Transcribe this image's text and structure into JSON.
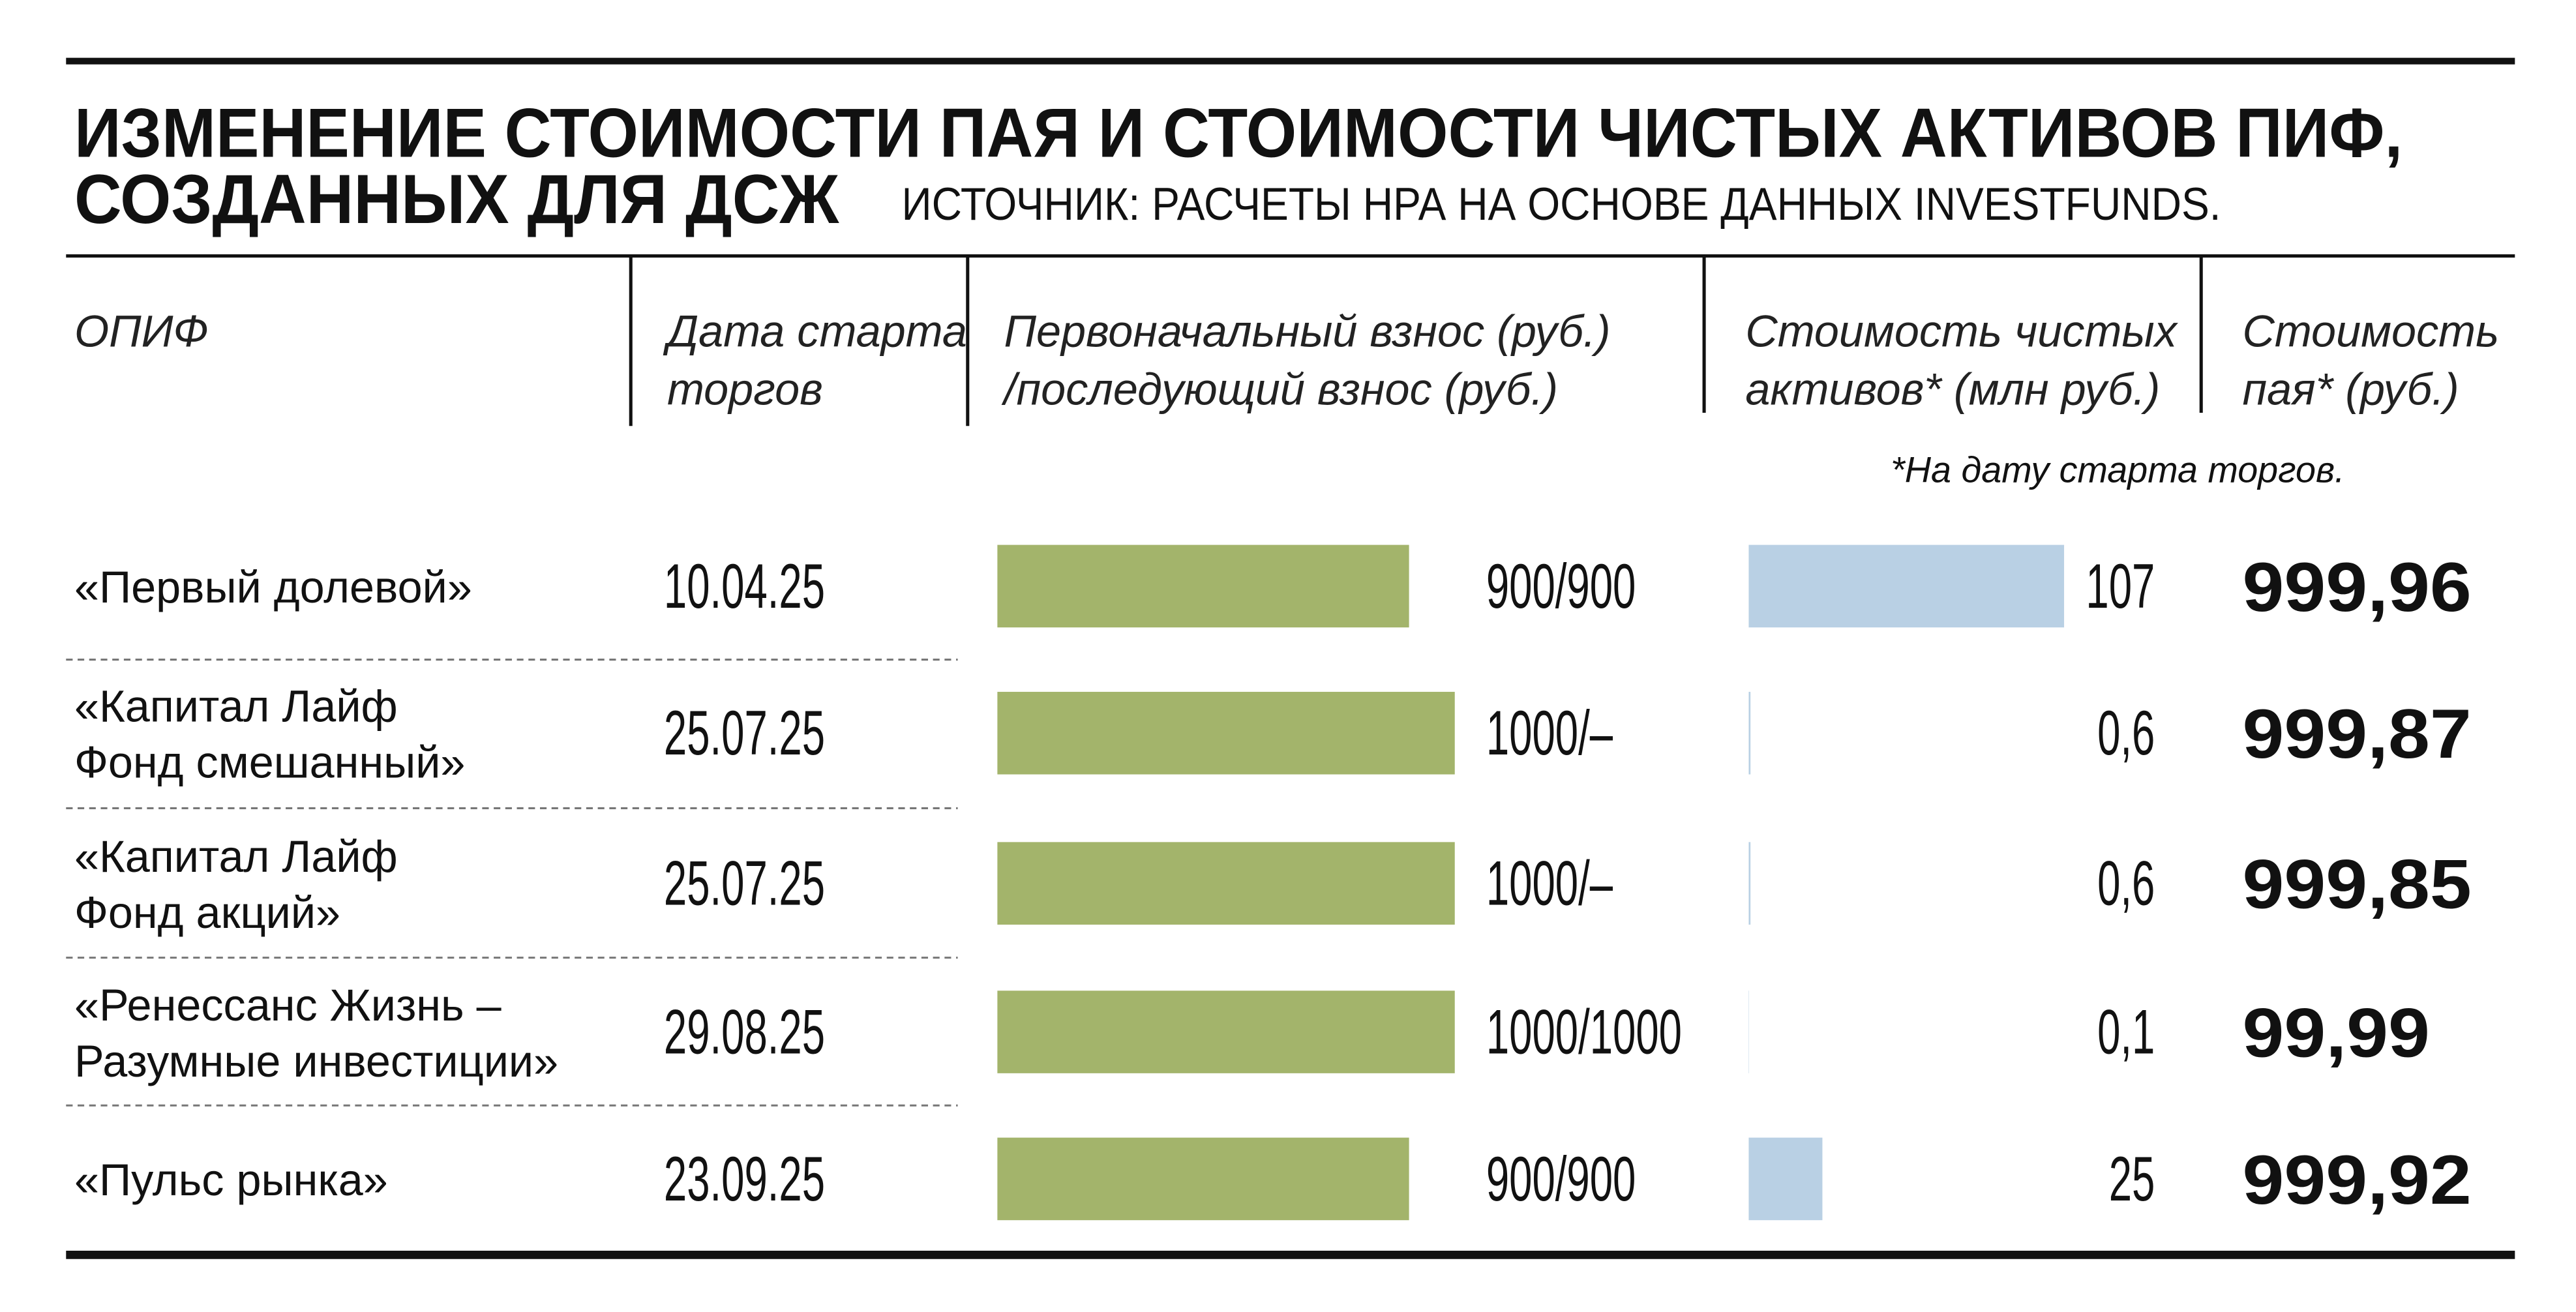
{
  "header": {
    "title_line1": "ИЗМЕНЕНИЕ СТОИМОСТИ ПАЯ И СТОИМОСТИ ЧИСТЫХ АКТИВОВ ПИФ,",
    "title_line2": "СОЗДАННЫХ ДЛЯ ДСЖ",
    "source": "ИСТОЧНИК: РАСЧЕТЫ НРА НА ОСНОВЕ ДАННЫХ INVESTFUNDS."
  },
  "columns": [
    [
      "ОПИФ"
    ],
    [
      "Дата старта",
      "торгов"
    ],
    [
      "Первоначальный взнос (руб.)",
      "/последующий взнос (руб.)"
    ],
    [
      "Стоимость чистых",
      "активов* (млн руб.)"
    ],
    [
      "Стоимость",
      "пая* (руб.)"
    ]
  ],
  "footnote": "*На дату старта торгов.",
  "contribution_color": "#a3b46b",
  "net_assets_color": "#b9d0e4",
  "rows": [
    {
      "name": [
        "«Первый долевой»"
      ],
      "date": "10.04.25",
      "contribution": {
        "value": 900,
        "label": "900/900"
      },
      "net_assets": 107,
      "unit_price": {
        "value": 999.96,
        "label": "999,96"
      }
    },
    {
      "name": [
        "«Капитал Лайф",
        "Фонд смешанный»"
      ],
      "date": "25.07.25",
      "contribution": {
        "value": 1000,
        "label": "1000/–"
      },
      "net_assets": {
        "value": 0.6,
        "label": "0,6"
      },
      "unit_price": {
        "value": 999.87,
        "label": "999,87"
      }
    },
    {
      "name": [
        "«Капитал Лайф",
        "Фонд акций»"
      ],
      "date": "25.07.25",
      "contribution": {
        "value": 1000,
        "label": "1000/–"
      },
      "net_assets": {
        "value": 0.6,
        "label": "0,6"
      },
      "unit_price": {
        "value": 999.85,
        "label": "999,85"
      }
    },
    {
      "name": [
        "«Ренессанс Жизнь –",
        "Разумные инвестиции»"
      ],
      "date": "29.08.25",
      "contribution": {
        "value": 1000,
        "label": "1000/1000"
      },
      "net_assets": {
        "value": 0.1,
        "label": "0,1"
      },
      "unit_price": {
        "value": 99.99,
        "label": "99,99"
      }
    },
    {
      "name": [
        "«Пульс рынка»"
      ],
      "date": "23.09.25",
      "contribution": {
        "value": 900,
        "label": "900/900"
      },
      "net_assets": 25,
      "unit_price": {
        "value": 999.92,
        "label": "999,92"
      }
    }
  ]
}
